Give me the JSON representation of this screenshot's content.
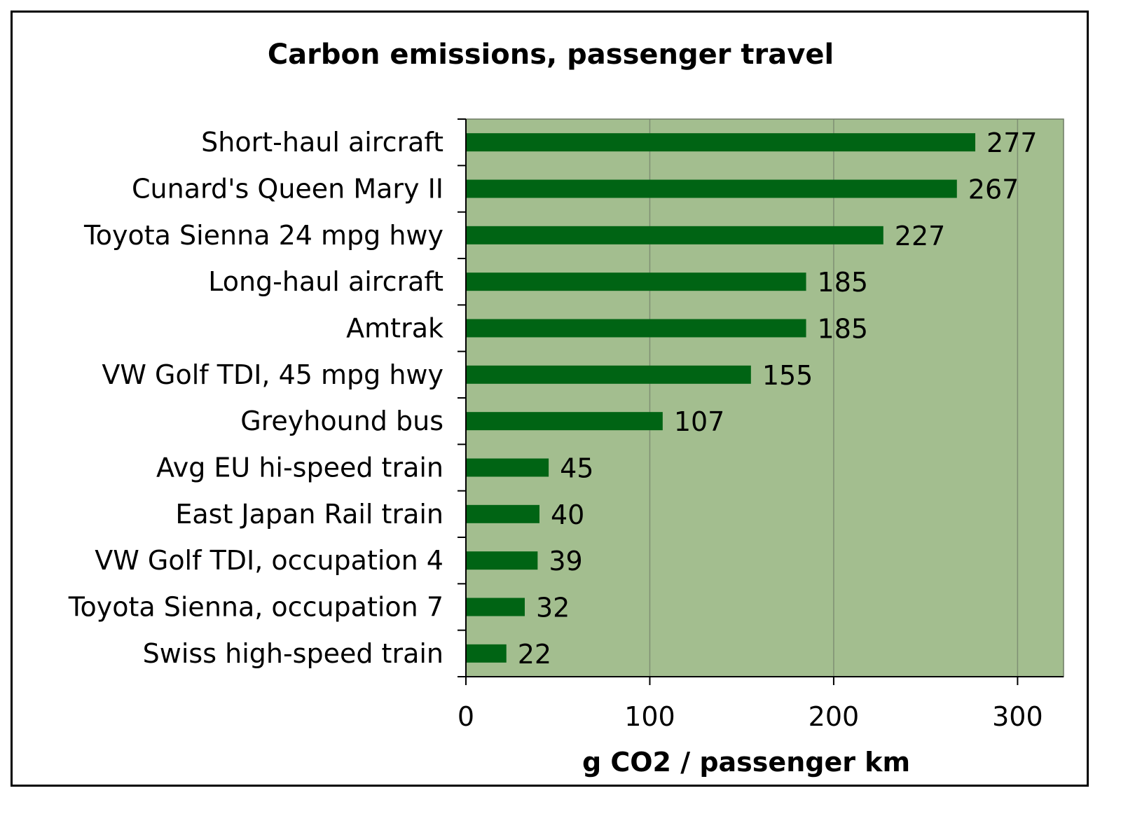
{
  "chart_data": {
    "type": "bar",
    "orientation": "horizontal",
    "title": "Carbon emissions, passenger travel",
    "xlabel": "g CO2 / passenger km",
    "ylabel": "",
    "xlim": [
      0,
      325
    ],
    "xticks": [
      0,
      100,
      200,
      300
    ],
    "grid": true,
    "legend": "none",
    "categories": [
      "Short-haul aircraft",
      "Cunard's Queen Mary II",
      "Toyota Sienna 24 mpg hwy",
      "Long-haul aircraft",
      "Amtrak",
      "VW Golf TDI, 45 mpg hwy",
      "Greyhound bus",
      "Avg EU hi-speed train",
      "East Japan Rail train",
      "VW Golf TDI, occupation 4",
      "Toyota Sienna, occupation 7",
      "Swiss high-speed train"
    ],
    "values": [
      277,
      267,
      227,
      185,
      185,
      155,
      107,
      45,
      40,
      39,
      32,
      22
    ],
    "colors": {
      "plot_bg": "#a3be8f",
      "bar": "#006414",
      "grid": "#7f8f74",
      "axis": "#000000"
    }
  }
}
